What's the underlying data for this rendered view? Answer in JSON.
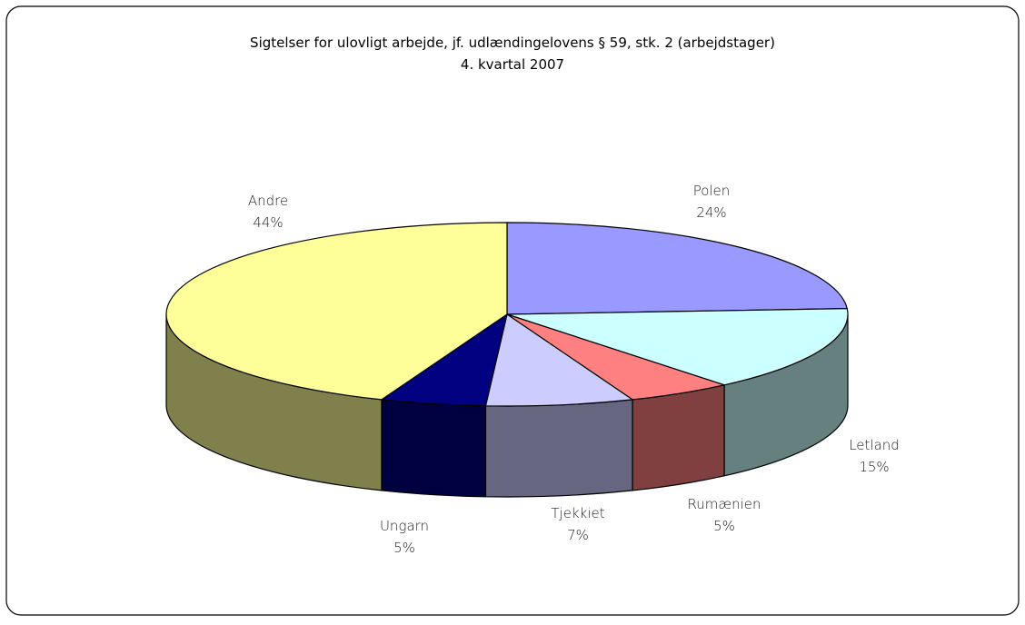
{
  "chart_data": {
    "type": "pie3d",
    "title": "Sigtelser for ulovligt arbejde, jf. udlændingelovens § 59, stk. 2 (arbejdstager)",
    "subtitle": "4. kvartal 2007",
    "categories": [
      "Polen",
      "Letland",
      "Rumænien",
      "Tjekkiet",
      "Ungarn",
      "Andre"
    ],
    "values": [
      24,
      15,
      5,
      7,
      5,
      44
    ],
    "value_labels": [
      "24%",
      "15%",
      "5%",
      "7%",
      "5%",
      "44%"
    ],
    "colors": [
      "#9999ff",
      "#ccffff",
      "#ff8080",
      "#ccccff",
      "#000080",
      "#ffff99"
    ]
  }
}
